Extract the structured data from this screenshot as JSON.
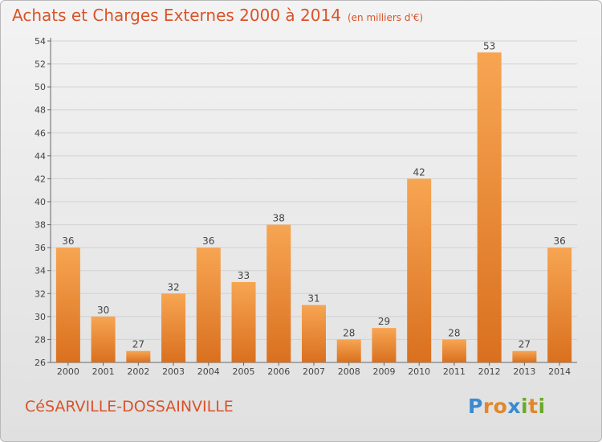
{
  "header": {
    "title": "Achats et Charges Externes 2000 à 2014",
    "subtitle": "(en milliers d'€)"
  },
  "footer": {
    "city": "CéSARVILLE-DOSSAINVILLE",
    "logo_text": "Proxiti"
  },
  "colors": {
    "title": "#d9532a",
    "bar_light": "#f7a552",
    "bar_dark": "#d9701f",
    "logo_p": "#3a8ad1",
    "logo_r": "#e2872b",
    "logo_o": "#e2872b",
    "logo_x": "#3a8ad1",
    "logo_i": "#6aaa2a",
    "logo_t": "#e2872b",
    "logo_i2": "#6aaa2a"
  },
  "chart_data": {
    "type": "bar",
    "title": "Achats et Charges Externes 2000 à 2014",
    "subtitle": "(en milliers d'€)",
    "categories": [
      "2000",
      "2001",
      "2002",
      "2003",
      "2004",
      "2005",
      "2006",
      "2007",
      "2008",
      "2009",
      "2010",
      "2011",
      "2012",
      "2013",
      "2014"
    ],
    "values": [
      36,
      30,
      27,
      32,
      36,
      33,
      38,
      31,
      28,
      29,
      42,
      28,
      53,
      27,
      36
    ],
    "ylim": [
      26,
      54
    ],
    "yticks": [
      26,
      28,
      30,
      32,
      34,
      36,
      38,
      40,
      42,
      44,
      46,
      48,
      50,
      52,
      54
    ],
    "grid": true,
    "legend": "none"
  }
}
